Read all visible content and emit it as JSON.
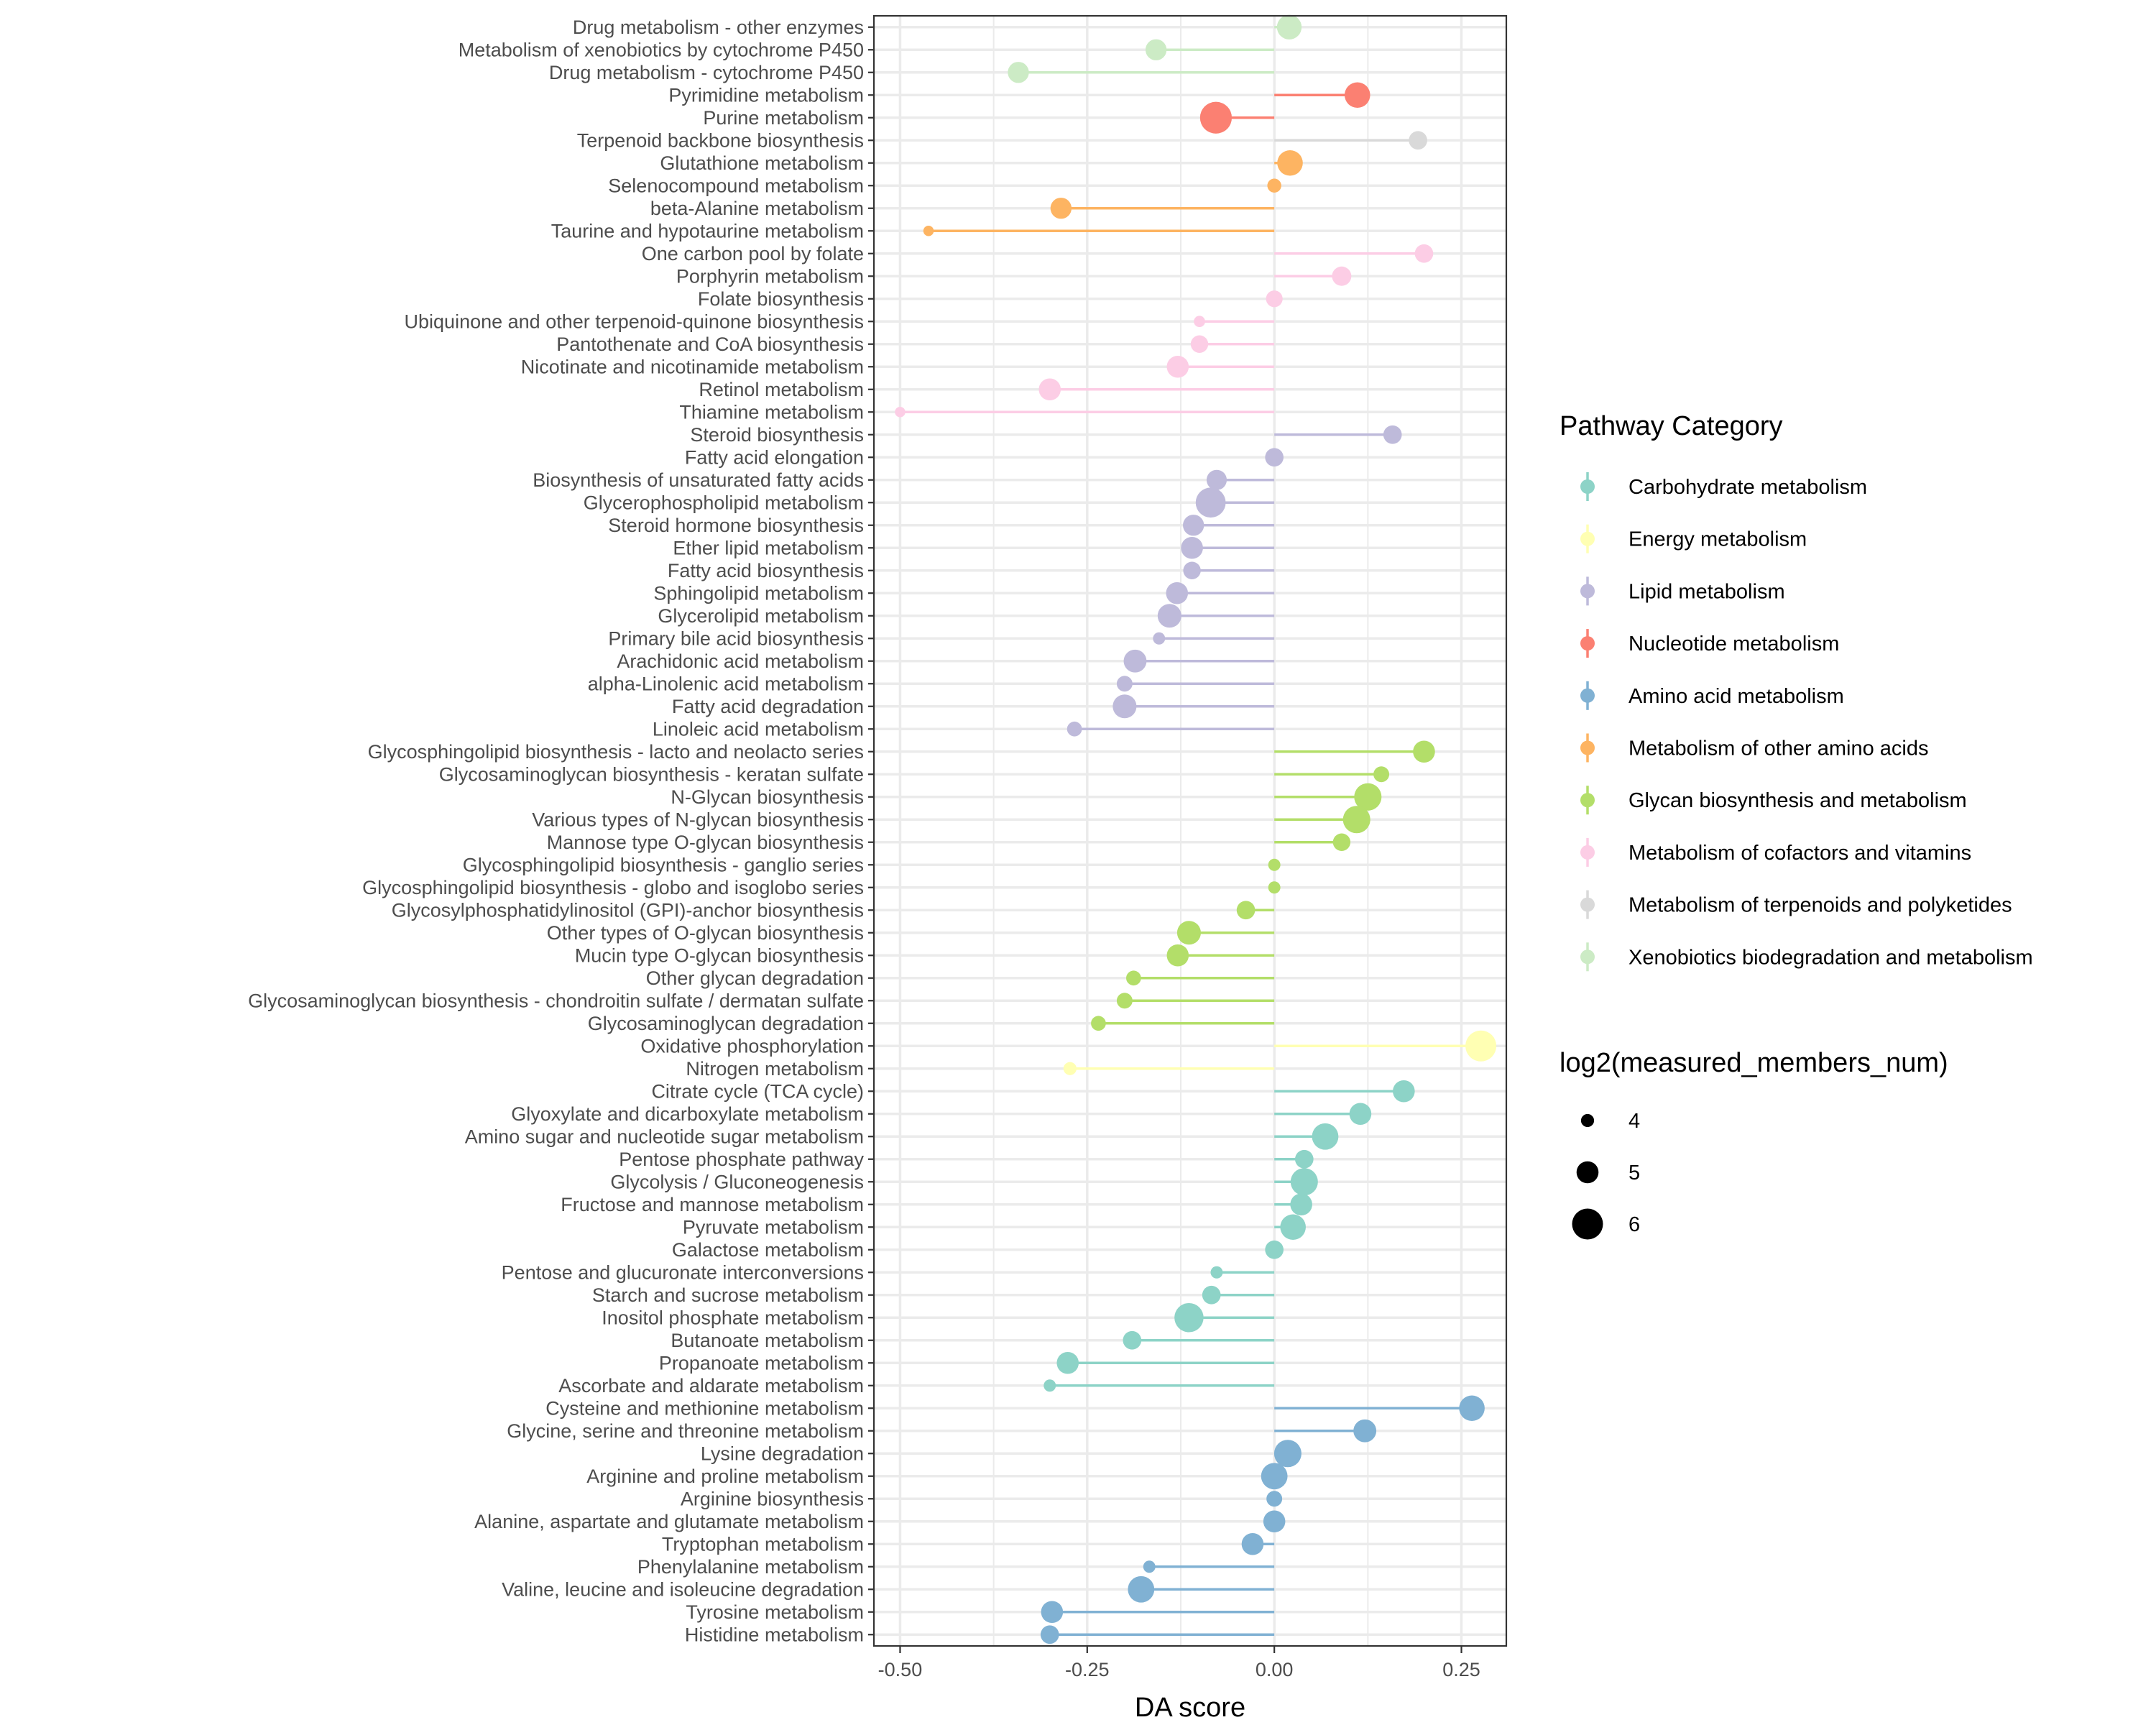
{
  "chart_data": {
    "type": "lollipop",
    "title": "",
    "xlabel": "DA score",
    "ylabel": "",
    "xlim": [
      -0.535,
      0.31
    ],
    "xticks": [
      -0.5,
      -0.25,
      0.0,
      0.25
    ],
    "xtick_labels": [
      "-0.50",
      "-0.25",
      "0.00",
      "0.25"
    ],
    "grid": true,
    "legend_position": "right",
    "color_legend": {
      "title": "Pathway Category",
      "categories": [
        {
          "name": "Carbohydrate metabolism",
          "color": "#8DD3C7"
        },
        {
          "name": "Energy metabolism",
          "color": "#FFFFB3"
        },
        {
          "name": "Lipid metabolism",
          "color": "#BEBADA"
        },
        {
          "name": "Nucleotide metabolism",
          "color": "#FB8072"
        },
        {
          "name": "Amino acid metabolism",
          "color": "#80B1D3"
        },
        {
          "name": "Metabolism of other amino acids",
          "color": "#FDB462"
        },
        {
          "name": "Glycan biosynthesis and metabolism",
          "color": "#B3DE69"
        },
        {
          "name": "Metabolism of cofactors and vitamins",
          "color": "#FCCDE5"
        },
        {
          "name": "Metabolism of terpenoids and polyketides",
          "color": "#D9D9D9"
        },
        {
          "name": "Xenobiotics biodegradation and metabolism",
          "color": "#CCEBC5"
        }
      ]
    },
    "size_legend": {
      "title": "log2(measured_members_num)",
      "values": [
        4,
        5,
        6
      ],
      "labels": [
        "4",
        "5",
        "6"
      ]
    },
    "points": [
      {
        "pathway": "Drug metabolism - other enzymes",
        "category": "Xenobiotics biodegradation and metabolism",
        "da_score": 0.02,
        "log2_size": 5.3
      },
      {
        "pathway": "Metabolism of xenobiotics by cytochrome P450",
        "category": "Xenobiotics biodegradation and metabolism",
        "da_score": -0.158,
        "log2_size": 4.9
      },
      {
        "pathway": "Drug metabolism - cytochrome P450",
        "category": "Xenobiotics biodegradation and metabolism",
        "da_score": -0.342,
        "log2_size": 4.9
      },
      {
        "pathway": "Pyrimidine metabolism",
        "category": "Nucleotide metabolism",
        "da_score": 0.111,
        "log2_size": 5.4
      },
      {
        "pathway": "Purine metabolism",
        "category": "Nucleotide metabolism",
        "da_score": -0.078,
        "log2_size": 6.1
      },
      {
        "pathway": "Terpenoid backbone biosynthesis",
        "category": "Metabolism of terpenoids and polyketides",
        "da_score": 0.192,
        "log2_size": 4.6
      },
      {
        "pathway": "Glutathione metabolism",
        "category": "Metabolism of other amino acids",
        "da_score": 0.021,
        "log2_size": 5.4
      },
      {
        "pathway": "Selenocompound metabolism",
        "category": "Metabolism of other amino acids",
        "da_score": 0.0,
        "log2_size": 4.1
      },
      {
        "pathway": "beta-Alanine metabolism",
        "category": "Metabolism of other amino acids",
        "da_score": -0.285,
        "log2_size": 4.9
      },
      {
        "pathway": "Taurine and hypotaurine metabolism",
        "category": "Metabolism of other amino acids",
        "da_score": -0.462,
        "log2_size": 3.7
      },
      {
        "pathway": "One carbon pool by folate",
        "category": "Metabolism of cofactors and vitamins",
        "da_score": 0.2,
        "log2_size": 4.6
      },
      {
        "pathway": "Porphyrin metabolism",
        "category": "Metabolism of cofactors and vitamins",
        "da_score": 0.09,
        "log2_size": 4.7
      },
      {
        "pathway": "Folate biosynthesis",
        "category": "Metabolism of cofactors and vitamins",
        "da_score": 0.0,
        "log2_size": 4.4
      },
      {
        "pathway": "Ubiquinone and other terpenoid-quinone biosynthesis",
        "category": "Metabolism of cofactors and vitamins",
        "da_score": -0.1,
        "log2_size": 3.8
      },
      {
        "pathway": "Pantothenate and CoA biosynthesis",
        "category": "Metabolism of cofactors and vitamins",
        "da_score": -0.1,
        "log2_size": 4.5
      },
      {
        "pathway": "Nicotinate and nicotinamide metabolism",
        "category": "Metabolism of cofactors and vitamins",
        "da_score": -0.129,
        "log2_size": 5.0
      },
      {
        "pathway": "Retinol metabolism",
        "category": "Metabolism of cofactors and vitamins",
        "da_score": -0.3,
        "log2_size": 5.0
      },
      {
        "pathway": "Thiamine metabolism",
        "category": "Metabolism of cofactors and vitamins",
        "da_score": -0.5,
        "log2_size": 3.7
      },
      {
        "pathway": "Steroid biosynthesis",
        "category": "Lipid metabolism",
        "da_score": 0.158,
        "log2_size": 4.6
      },
      {
        "pathway": "Fatty acid elongation",
        "category": "Lipid metabolism",
        "da_score": 0.0,
        "log2_size": 4.6
      },
      {
        "pathway": "Biosynthesis of unsaturated fatty acids",
        "category": "Lipid metabolism",
        "da_score": -0.077,
        "log2_size": 4.8
      },
      {
        "pathway": "Glycerophospholipid metabolism",
        "category": "Lipid metabolism",
        "da_score": -0.085,
        "log2_size": 5.9
      },
      {
        "pathway": "Steroid hormone biosynthesis",
        "category": "Lipid metabolism",
        "da_score": -0.108,
        "log2_size": 4.9
      },
      {
        "pathway": "Ether lipid metabolism",
        "category": "Lipid metabolism",
        "da_score": -0.11,
        "log2_size": 5.0
      },
      {
        "pathway": "Fatty acid biosynthesis",
        "category": "Lipid metabolism",
        "da_score": -0.11,
        "log2_size": 4.5
      },
      {
        "pathway": "Sphingolipid metabolism",
        "category": "Lipid metabolism",
        "da_score": -0.13,
        "log2_size": 5.0
      },
      {
        "pathway": "Glycerolipid metabolism",
        "category": "Lipid metabolism",
        "da_score": -0.14,
        "log2_size": 5.2
      },
      {
        "pathway": "Primary bile acid biosynthesis",
        "category": "Lipid metabolism",
        "da_score": -0.154,
        "log2_size": 3.9
      },
      {
        "pathway": "Arachidonic acid metabolism",
        "category": "Lipid metabolism",
        "da_score": -0.186,
        "log2_size": 5.1
      },
      {
        "pathway": "alpha-Linolenic acid metabolism",
        "category": "Lipid metabolism",
        "da_score": -0.2,
        "log2_size": 4.3
      },
      {
        "pathway": "Fatty acid degradation",
        "category": "Lipid metabolism",
        "da_score": -0.2,
        "log2_size": 5.2
      },
      {
        "pathway": "Linoleic acid metabolism",
        "category": "Lipid metabolism",
        "da_score": -0.267,
        "log2_size": 4.2
      },
      {
        "pathway": "Glycosphingolipid biosynthesis - lacto and neolacto series",
        "category": "Glycan biosynthesis and metabolism",
        "da_score": 0.2,
        "log2_size": 5.0
      },
      {
        "pathway": "Glycosaminoglycan biosynthesis - keratan sulfate",
        "category": "Glycan biosynthesis and metabolism",
        "da_score": 0.143,
        "log2_size": 4.3
      },
      {
        "pathway": "N-Glycan biosynthesis",
        "category": "Glycan biosynthesis and metabolism",
        "da_score": 0.125,
        "log2_size": 5.6
      },
      {
        "pathway": "Various types of N-glycan biosynthesis",
        "category": "Glycan biosynthesis and metabolism",
        "da_score": 0.11,
        "log2_size": 5.6
      },
      {
        "pathway": "Mannose type O-glycan biosynthesis",
        "category": "Glycan biosynthesis and metabolism",
        "da_score": 0.09,
        "log2_size": 4.5
      },
      {
        "pathway": "Glycosphingolipid biosynthesis - ganglio series",
        "category": "Glycan biosynthesis and metabolism",
        "da_score": 0.0,
        "log2_size": 3.9
      },
      {
        "pathway": "Glycosphingolipid biosynthesis - globo and isoglobo series",
        "category": "Glycan biosynthesis and metabolism",
        "da_score": 0.0,
        "log2_size": 3.9
      },
      {
        "pathway": "Glycosylphosphatidylinositol (GPI)-anchor biosynthesis",
        "category": "Glycan biosynthesis and metabolism",
        "da_score": -0.038,
        "log2_size": 4.6
      },
      {
        "pathway": "Other types of O-glycan biosynthesis",
        "category": "Glycan biosynthesis and metabolism",
        "da_score": -0.114,
        "log2_size": 5.2
      },
      {
        "pathway": "Mucin type O-glycan biosynthesis",
        "category": "Glycan biosynthesis and metabolism",
        "da_score": -0.129,
        "log2_size": 5.0
      },
      {
        "pathway": "Other glycan degradation",
        "category": "Glycan biosynthesis and metabolism",
        "da_score": -0.188,
        "log2_size": 4.2
      },
      {
        "pathway": "Glycosaminoglycan biosynthesis - chondroitin sulfate / dermatan sulfate",
        "category": "Glycan biosynthesis and metabolism",
        "da_score": -0.2,
        "log2_size": 4.3
      },
      {
        "pathway": "Glycosaminoglycan degradation",
        "category": "Glycan biosynthesis and metabolism",
        "da_score": -0.235,
        "log2_size": 4.2
      },
      {
        "pathway": "Oxidative phosphorylation",
        "category": "Energy metabolism",
        "da_score": 0.276,
        "log2_size": 6.0
      },
      {
        "pathway": "Nitrogen metabolism",
        "category": "Energy metabolism",
        "da_score": -0.273,
        "log2_size": 4.0
      },
      {
        "pathway": "Citrate cycle (TCA cycle)",
        "category": "Carbohydrate metabolism",
        "da_score": 0.173,
        "log2_size": 5.0
      },
      {
        "pathway": "Glyoxylate and dicarboxylate metabolism",
        "category": "Carbohydrate metabolism",
        "da_score": 0.115,
        "log2_size": 5.0
      },
      {
        "pathway": "Amino sugar and nucleotide sugar metabolism",
        "category": "Carbohydrate metabolism",
        "da_score": 0.068,
        "log2_size": 5.5
      },
      {
        "pathway": "Pentose phosphate pathway",
        "category": "Carbohydrate metabolism",
        "da_score": 0.04,
        "log2_size": 4.6
      },
      {
        "pathway": "Glycolysis / Gluconeogenesis",
        "category": "Carbohydrate metabolism",
        "da_score": 0.04,
        "log2_size": 5.6
      },
      {
        "pathway": "Fructose and mannose metabolism",
        "category": "Carbohydrate metabolism",
        "da_score": 0.036,
        "log2_size": 5.0
      },
      {
        "pathway": "Pyruvate metabolism",
        "category": "Carbohydrate metabolism",
        "da_score": 0.025,
        "log2_size": 5.4
      },
      {
        "pathway": "Galactose metabolism",
        "category": "Carbohydrate metabolism",
        "da_score": 0.0,
        "log2_size": 4.6
      },
      {
        "pathway": "Pentose and glucuronate interconversions",
        "category": "Carbohydrate metabolism",
        "da_score": -0.077,
        "log2_size": 3.9
      },
      {
        "pathway": "Starch and sucrose metabolism",
        "category": "Carbohydrate metabolism",
        "da_score": -0.084,
        "log2_size": 4.6
      },
      {
        "pathway": "Inositol phosphate metabolism",
        "category": "Carbohydrate metabolism",
        "da_score": -0.114,
        "log2_size": 5.8
      },
      {
        "pathway": "Butanoate metabolism",
        "category": "Carbohydrate metabolism",
        "da_score": -0.19,
        "log2_size": 4.6
      },
      {
        "pathway": "Propanoate metabolism",
        "category": "Carbohydrate metabolism",
        "da_score": -0.276,
        "log2_size": 5.0
      },
      {
        "pathway": "Ascorbate and aldarate metabolism",
        "category": "Carbohydrate metabolism",
        "da_score": -0.3,
        "log2_size": 3.9
      },
      {
        "pathway": "Cysteine and methionine metabolism",
        "category": "Amino acid metabolism",
        "da_score": 0.264,
        "log2_size": 5.4
      },
      {
        "pathway": "Glycine, serine and threonine metabolism",
        "category": "Amino acid metabolism",
        "da_score": 0.121,
        "log2_size": 5.1
      },
      {
        "pathway": "Lysine degradation",
        "category": "Amino acid metabolism",
        "da_score": 0.018,
        "log2_size": 5.6
      },
      {
        "pathway": "Arginine and proline metabolism",
        "category": "Amino acid metabolism",
        "da_score": 0.0,
        "log2_size": 5.5
      },
      {
        "pathway": "Arginine biosynthesis",
        "category": "Amino acid metabolism",
        "da_score": 0.0,
        "log2_size": 4.3
      },
      {
        "pathway": "Alanine, aspartate and glutamate metabolism",
        "category": "Amino acid metabolism",
        "da_score": 0.0,
        "log2_size": 5.0
      },
      {
        "pathway": "Tryptophan metabolism",
        "category": "Amino acid metabolism",
        "da_score": -0.029,
        "log2_size": 5.0
      },
      {
        "pathway": "Phenylalanine metabolism",
        "category": "Amino acid metabolism",
        "da_score": -0.167,
        "log2_size": 3.9
      },
      {
        "pathway": "Valine, leucine and isoleucine degradation",
        "category": "Amino acid metabolism",
        "da_score": -0.178,
        "log2_size": 5.5
      },
      {
        "pathway": "Tyrosine metabolism",
        "category": "Amino acid metabolism",
        "da_score": -0.297,
        "log2_size": 5.0
      },
      {
        "pathway": "Histidine metabolism",
        "category": "Amino acid metabolism",
        "da_score": -0.3,
        "log2_size": 4.6
      }
    ]
  }
}
